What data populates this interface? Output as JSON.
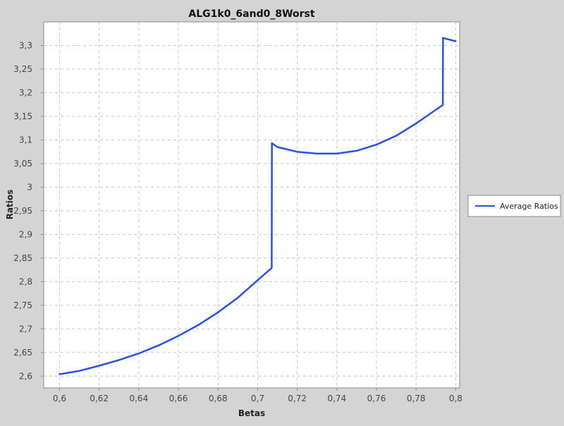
{
  "chart_data": {
    "type": "line",
    "title": "ALG1k0_6and0_8Worst",
    "xlabel": "Betas",
    "ylabel": "Ratios",
    "xlim": [
      0.592,
      0.802
    ],
    "ylim": [
      2.575,
      3.35
    ],
    "xticks": [
      "0,6",
      "0,62",
      "0,64",
      "0,66",
      "0,68",
      "0,7",
      "0,72",
      "0,74",
      "0,76",
      "0,78",
      "0,8"
    ],
    "xtick_values": [
      0.6,
      0.62,
      0.64,
      0.66,
      0.68,
      0.7,
      0.72,
      0.74,
      0.76,
      0.78,
      0.8
    ],
    "yticks": [
      "2,6",
      "2,65",
      "2,7",
      "2,75",
      "2,8",
      "2,85",
      "2,9",
      "2,95",
      "3",
      "3,05",
      "3,1",
      "3,15",
      "3,2",
      "3,25",
      "3,3"
    ],
    "ytick_values": [
      2.6,
      2.65,
      2.7,
      2.75,
      2.8,
      2.85,
      2.9,
      2.95,
      3.0,
      3.05,
      3.1,
      3.15,
      3.2,
      3.25,
      3.3
    ],
    "grid": true,
    "legend_position": "right",
    "series": [
      {
        "name": "Average Ratios",
        "color": "#2a50e6",
        "x": [
          0.6,
          0.61,
          0.62,
          0.63,
          0.64,
          0.65,
          0.66,
          0.67,
          0.68,
          0.69,
          0.7,
          0.7071,
          0.7072,
          0.71,
          0.72,
          0.73,
          0.74,
          0.75,
          0.76,
          0.77,
          0.78,
          0.7935,
          0.7936,
          0.8
        ],
        "y": [
          2.604,
          2.611,
          2.622,
          2.634,
          2.648,
          2.665,
          2.685,
          2.708,
          2.735,
          2.766,
          2.803,
          2.829,
          3.093,
          3.085,
          3.075,
          3.071,
          3.071,
          3.077,
          3.09,
          3.109,
          3.135,
          3.174,
          3.316,
          3.309
        ]
      }
    ]
  }
}
